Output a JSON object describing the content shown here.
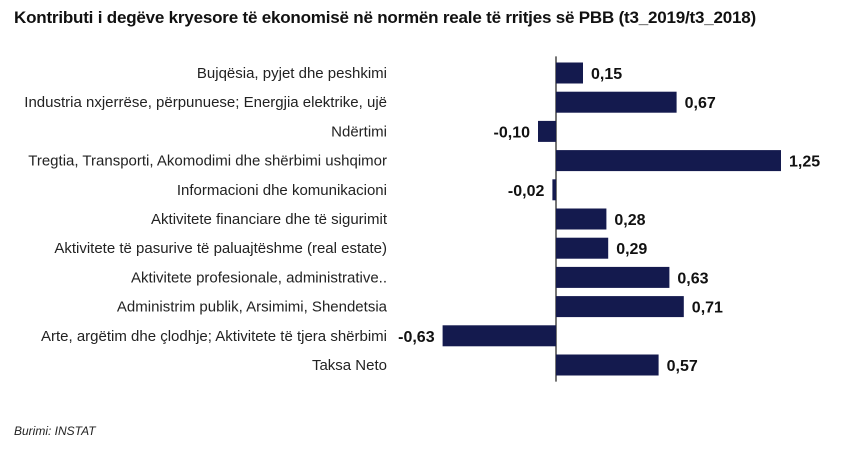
{
  "chart_data": {
    "type": "bar",
    "orientation": "horizontal",
    "title": "Kontributi i degëve kryesore të ekonomisë në normën reale të rritjes së PBB (t3_2019/t3_2018)",
    "categories": [
      "Bujqësia, pyjet dhe peshkimi",
      "Industria nxjerrëse, përpunuese; Energjia elektrike, ujë",
      "Ndërtimi",
      "Tregtia, Transporti, Akomodimi dhe shërbimi ushqimor",
      "Informacioni dhe komunikacioni",
      "Aktivitete financiare dhe të sigurimit",
      "Aktivitete të pasurive të paluajtëshme (real estate)",
      "Aktivitete profesionale, administrative..",
      "Administrim publik, Arsimimi, Shendetsia",
      "Arte, argëtim dhe çlodhje; Aktivitete të tjera shërbimi",
      "Taksa Neto"
    ],
    "values": [
      0.15,
      0.67,
      -0.1,
      1.25,
      -0.02,
      0.28,
      0.29,
      0.63,
      0.71,
      -0.63,
      0.57
    ],
    "value_labels": [
      "0,15",
      "0,67",
      "-0,10",
      "1,25",
      "-0,02",
      "0,28",
      "0,29",
      "0,63",
      "0,71",
      "-0,63",
      "0,57"
    ],
    "xlim": [
      -0.63,
      1.25
    ],
    "bar_color": "#141a4e",
    "axis_color": "#2b2b2b",
    "grid": false,
    "legend": "none"
  },
  "footer": {
    "source": "Burimi: INSTAT"
  }
}
